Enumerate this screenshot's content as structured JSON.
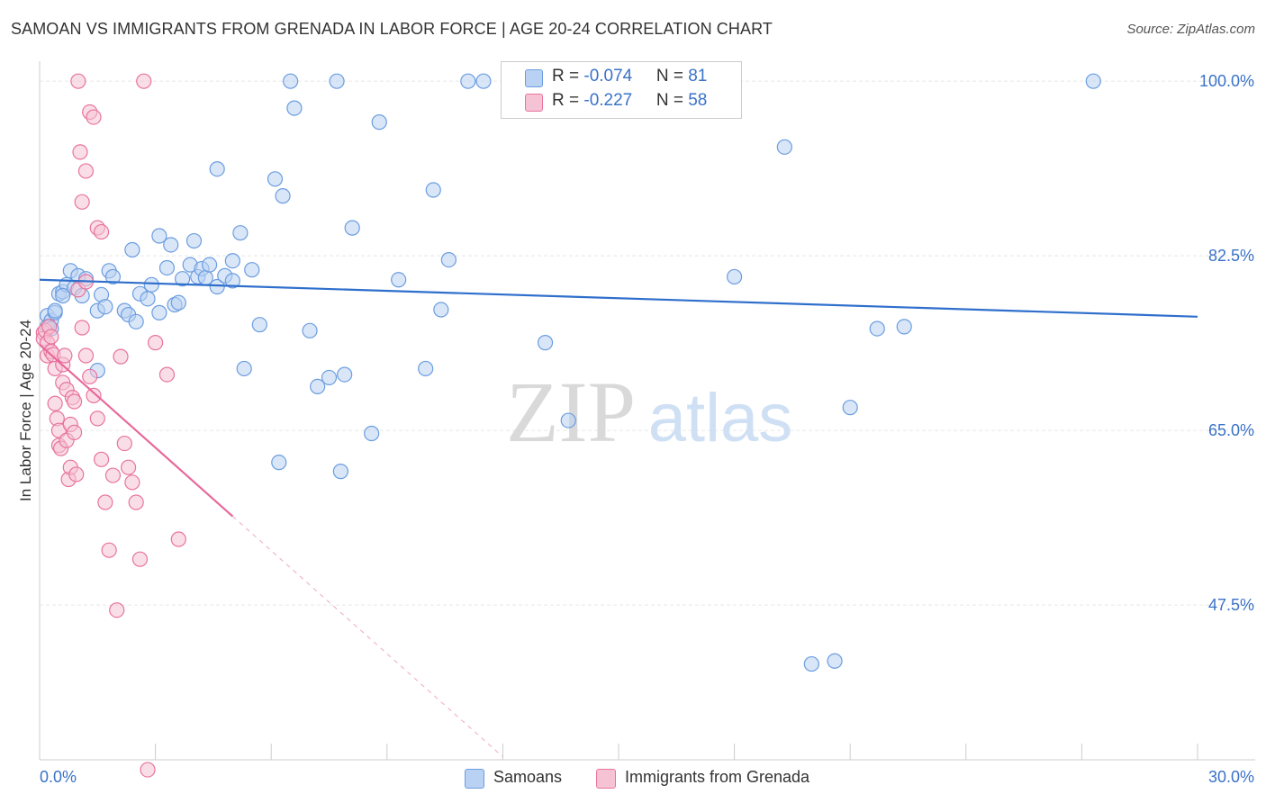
{
  "title": "SAMOAN VS IMMIGRANTS FROM GRENADA IN LABOR FORCE | AGE 20-24 CORRELATION CHART",
  "source": "Source: ZipAtlas.com",
  "watermark": {
    "zip": "ZIP",
    "atlas": "atlas"
  },
  "colors": {
    "blue": "#6b9de0",
    "blue_fill": "#b9d2f3",
    "pink": "#e8749e",
    "pink_fill": "#f6c3d4",
    "blue_line": "#2f6fcc",
    "pink_line": "#e8689a",
    "label": "#3a72c8"
  },
  "legend_top": {
    "rows": [
      {
        "r_label": "R = ",
        "r_value": "-0.074",
        "n_label": "N = ",
        "n_value": "81"
      },
      {
        "r_label": "R = ",
        "r_value": "-0.227",
        "n_label": "N = ",
        "n_value": "58"
      }
    ]
  },
  "chart_data": {
    "type": "scatter",
    "title": "SAMOAN VS IMMIGRANTS FROM GRENADA IN LABOR FORCE | AGE 20-24 CORRELATION CHART",
    "xlabel": "",
    "ylabel": "In Labor Force | Age 20-24",
    "xlim": [
      0,
      30
    ],
    "ylim": [
      32,
      102
    ],
    "x_tick_labels": [
      "0.0%",
      "30.0%"
    ],
    "y_ticks": [
      47.5,
      65.0,
      82.5,
      100.0
    ],
    "y_tick_labels": [
      "47.5%",
      "65.0%",
      "82.5%",
      "100.0%"
    ],
    "grid": true,
    "legend_position": "bottom",
    "series": [
      {
        "name": "Samoans",
        "color": "#6b9de0",
        "trend": {
          "x": [
            0,
            30
          ],
          "y": [
            80.1,
            76.4
          ]
        },
        "points": [
          [
            0.2,
            76.5
          ],
          [
            0.3,
            76.0
          ],
          [
            0.4,
            76.8
          ],
          [
            0.5,
            78.7
          ],
          [
            0.6,
            78.9
          ],
          [
            0.7,
            79.6
          ],
          [
            0.8,
            81.0
          ],
          [
            0.9,
            79.3
          ],
          [
            1.0,
            80.5
          ],
          [
            1.1,
            78.5
          ],
          [
            1.2,
            80.2
          ],
          [
            1.5,
            77.0
          ],
          [
            1.6,
            78.6
          ],
          [
            1.7,
            77.4
          ],
          [
            1.8,
            81.0
          ],
          [
            1.9,
            80.4
          ],
          [
            2.2,
            77.0
          ],
          [
            2.3,
            76.6
          ],
          [
            2.4,
            83.1
          ],
          [
            2.5,
            75.9
          ],
          [
            2.6,
            78.7
          ],
          [
            2.8,
            78.2
          ],
          [
            2.9,
            79.6
          ],
          [
            3.1,
            84.5
          ],
          [
            3.1,
            76.8
          ],
          [
            3.3,
            81.3
          ],
          [
            3.4,
            83.6
          ],
          [
            3.5,
            77.6
          ],
          [
            3.6,
            77.8
          ],
          [
            3.7,
            80.2
          ],
          [
            3.9,
            81.6
          ],
          [
            4.0,
            84.0
          ],
          [
            4.1,
            80.4
          ],
          [
            4.2,
            81.2
          ],
          [
            4.3,
            80.3
          ],
          [
            4.4,
            81.6
          ],
          [
            4.6,
            91.2
          ],
          [
            4.6,
            79.4
          ],
          [
            4.8,
            80.5
          ],
          [
            5.0,
            80.0
          ],
          [
            5.0,
            82.0
          ],
          [
            5.2,
            84.8
          ],
          [
            5.3,
            71.2
          ],
          [
            5.5,
            81.1
          ],
          [
            5.7,
            75.6
          ],
          [
            6.1,
            90.2
          ],
          [
            6.2,
            61.8
          ],
          [
            6.3,
            88.5
          ],
          [
            6.5,
            100.0
          ],
          [
            6.6,
            97.3
          ],
          [
            7.0,
            75.0
          ],
          [
            7.2,
            69.4
          ],
          [
            7.5,
            70.3
          ],
          [
            7.7,
            100.0
          ],
          [
            7.8,
            60.9
          ],
          [
            7.9,
            70.6
          ],
          [
            8.1,
            85.3
          ],
          [
            8.6,
            64.7
          ],
          [
            8.8,
            95.9
          ],
          [
            9.3,
            80.1
          ],
          [
            10.0,
            71.2
          ],
          [
            10.2,
            89.1
          ],
          [
            10.4,
            77.1
          ],
          [
            10.6,
            82.1
          ],
          [
            11.1,
            100.0
          ],
          [
            11.5,
            100.0
          ],
          [
            13.1,
            73.8
          ],
          [
            13.7,
            66.0
          ],
          [
            18.0,
            80.4
          ],
          [
            19.3,
            93.4
          ],
          [
            20.0,
            41.6
          ],
          [
            20.6,
            41.9
          ],
          [
            21.0,
            67.3
          ],
          [
            21.7,
            75.2
          ],
          [
            22.4,
            75.4
          ],
          [
            27.3,
            100.0
          ],
          [
            0.2,
            75.4
          ],
          [
            1.5,
            71.0
          ],
          [
            0.3,
            75.2
          ],
          [
            0.4,
            77.0
          ],
          [
            0.6,
            78.5
          ]
        ]
      },
      {
        "name": "Immigrants from Grenada",
        "color": "#e8749e",
        "trend": {
          "x": [
            0,
            5
          ],
          "y": [
            73.6,
            56.4
          ]
        },
        "trend_ext": {
          "x": [
            5,
            12
          ],
          "y": [
            56.4,
            32.3
          ]
        },
        "points": [
          [
            0.1,
            74.8
          ],
          [
            0.1,
            74.2
          ],
          [
            0.15,
            75.0
          ],
          [
            0.2,
            73.8
          ],
          [
            0.2,
            72.5
          ],
          [
            0.25,
            75.4
          ],
          [
            0.3,
            72.9
          ],
          [
            0.3,
            74.4
          ],
          [
            0.35,
            72.6
          ],
          [
            0.4,
            71.2
          ],
          [
            0.4,
            67.7
          ],
          [
            0.45,
            66.2
          ],
          [
            0.5,
            65.0
          ],
          [
            0.5,
            63.5
          ],
          [
            0.55,
            63.2
          ],
          [
            0.6,
            69.8
          ],
          [
            0.6,
            71.6
          ],
          [
            0.65,
            72.5
          ],
          [
            0.7,
            69.1
          ],
          [
            0.7,
            64.0
          ],
          [
            0.75,
            60.1
          ],
          [
            0.8,
            65.6
          ],
          [
            0.8,
            61.3
          ],
          [
            0.85,
            68.3
          ],
          [
            0.9,
            64.8
          ],
          [
            0.95,
            60.6
          ],
          [
            1.0,
            100.0
          ],
          [
            1.0,
            79.1
          ],
          [
            1.1,
            75.3
          ],
          [
            1.2,
            79.9
          ],
          [
            1.2,
            72.5
          ],
          [
            1.3,
            70.4
          ],
          [
            1.4,
            68.5
          ],
          [
            1.5,
            66.2
          ],
          [
            1.6,
            62.1
          ],
          [
            1.7,
            57.8
          ],
          [
            1.8,
            53.0
          ],
          [
            1.9,
            60.5
          ],
          [
            2.0,
            47.0
          ],
          [
            2.1,
            72.4
          ],
          [
            2.2,
            63.7
          ],
          [
            2.3,
            61.3
          ],
          [
            2.4,
            59.8
          ],
          [
            2.5,
            57.8
          ],
          [
            2.6,
            52.1
          ],
          [
            2.7,
            100.0
          ],
          [
            2.8,
            31.0
          ],
          [
            3.0,
            73.8
          ],
          [
            3.3,
            70.6
          ],
          [
            3.6,
            54.1
          ],
          [
            1.05,
            92.9
          ],
          [
            1.1,
            87.9
          ],
          [
            1.2,
            91.0
          ],
          [
            1.3,
            96.9
          ],
          [
            1.4,
            96.4
          ],
          [
            1.5,
            85.3
          ],
          [
            1.6,
            84.9
          ],
          [
            0.9,
            67.9
          ]
        ]
      }
    ]
  },
  "legend_bottom": [
    {
      "label": "Samoans"
    },
    {
      "label": "Immigrants from Grenada"
    }
  ]
}
